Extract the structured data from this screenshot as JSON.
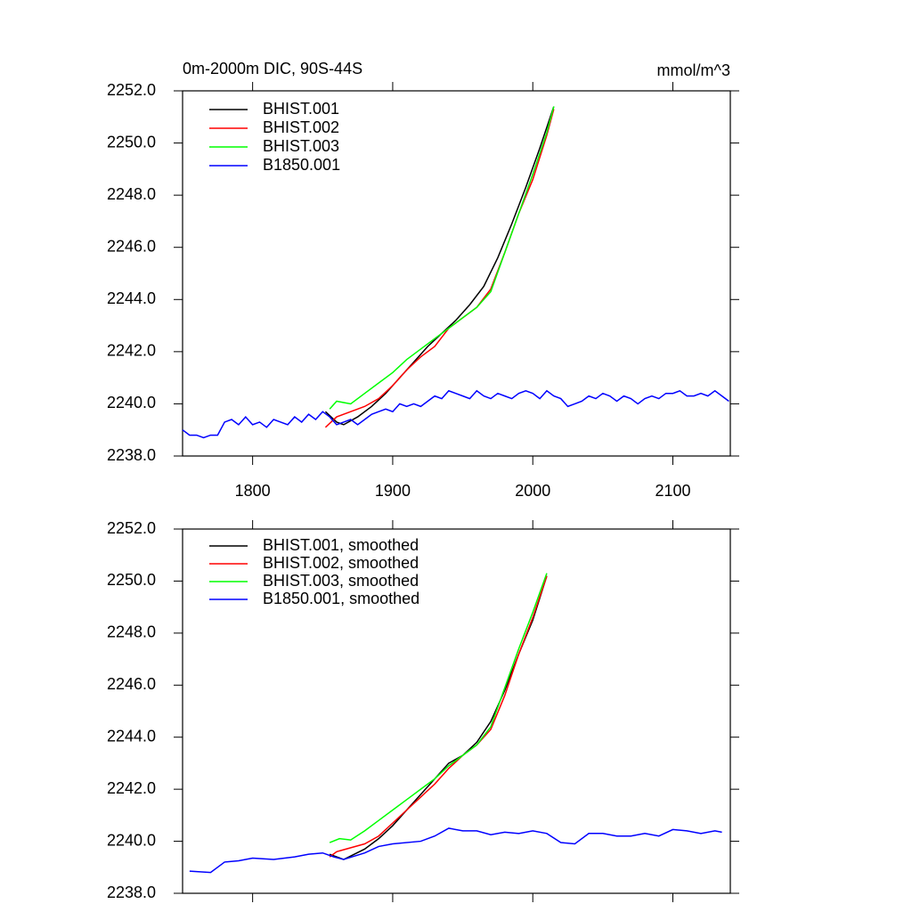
{
  "chart_data": [
    {
      "type": "line",
      "title": "0m-2000m DIC, 90S-44S",
      "subtitle": "mmol/m^3",
      "legend": "upper left",
      "xlim": [
        1750,
        2141
      ],
      "xticks": [
        1800,
        1900,
        2000,
        2100
      ],
      "ylim": [
        2238,
        2252
      ],
      "yticks": [
        {
          "value": 2238,
          "label": "2238.0"
        },
        {
          "value": 2240,
          "label": "2240.0"
        },
        {
          "value": 2242,
          "label": "2242.0"
        },
        {
          "value": 2244,
          "label": "2244.0"
        },
        {
          "value": 2246,
          "label": "2246.0"
        },
        {
          "value": 2248,
          "label": "2248.0"
        },
        {
          "value": 2250,
          "label": "2250.0"
        },
        {
          "value": 2252,
          "label": "2252.0"
        }
      ],
      "series": [
        {
          "name": "BHIST.001",
          "color": "#000000",
          "x": [
            1852,
            1860,
            1865,
            1875,
            1885,
            1895,
            1905,
            1915,
            1925,
            1935,
            1945,
            1955,
            1965,
            1975,
            1985,
            1995,
            2005,
            2015
          ],
          "values": [
            2239.7,
            2239.3,
            2239.2,
            2239.5,
            2239.9,
            2240.4,
            2241.0,
            2241.6,
            2242.2,
            2242.7,
            2243.2,
            2243.8,
            2244.5,
            2245.6,
            2246.9,
            2248.3,
            2249.8,
            2251.4
          ]
        },
        {
          "name": "BHIST.002",
          "color": "#ff0000",
          "x": [
            1852,
            1860,
            1870,
            1880,
            1890,
            1900,
            1910,
            1920,
            1930,
            1940,
            1950,
            1960,
            1970,
            1980,
            1990,
            2000,
            2010,
            2015
          ],
          "values": [
            2239.1,
            2239.5,
            2239.7,
            2239.9,
            2240.2,
            2240.7,
            2241.3,
            2241.8,
            2242.2,
            2242.9,
            2243.3,
            2243.7,
            2244.4,
            2245.8,
            2247.3,
            2248.6,
            2250.3,
            2251.3
          ]
        },
        {
          "name": "BHIST.003",
          "color": "#00ff00",
          "x": [
            1855,
            1860,
            1870,
            1880,
            1890,
            1900,
            1910,
            1920,
            1930,
            1940,
            1950,
            1960,
            1970,
            1980,
            1990,
            2000,
            2010,
            2015
          ],
          "values": [
            2239.8,
            2240.1,
            2240.0,
            2240.4,
            2240.8,
            2241.2,
            2241.7,
            2242.1,
            2242.5,
            2242.9,
            2243.3,
            2243.7,
            2244.3,
            2245.8,
            2247.3,
            2248.8,
            2250.4,
            2251.4
          ]
        },
        {
          "name": "B1850.001",
          "color": "#0000ff",
          "x": [
            1750,
            1755,
            1760,
            1765,
            1770,
            1775,
            1780,
            1785,
            1790,
            1795,
            1800,
            1805,
            1810,
            1815,
            1820,
            1825,
            1830,
            1835,
            1840,
            1845,
            1850,
            1855,
            1860,
            1865,
            1870,
            1875,
            1880,
            1885,
            1890,
            1895,
            1900,
            1905,
            1910,
            1915,
            1920,
            1925,
            1930,
            1935,
            1940,
            1945,
            1950,
            1955,
            1960,
            1965,
            1970,
            1975,
            1980,
            1985,
            1990,
            1995,
            2000,
            2005,
            2010,
            2015,
            2020,
            2025,
            2030,
            2035,
            2040,
            2045,
            2050,
            2055,
            2060,
            2065,
            2070,
            2075,
            2080,
            2085,
            2090,
            2095,
            2100,
            2105,
            2110,
            2115,
            2120,
            2125,
            2130,
            2135,
            2140
          ],
          "values": [
            2239.0,
            2238.8,
            2238.8,
            2238.7,
            2238.8,
            2238.8,
            2239.3,
            2239.4,
            2239.2,
            2239.5,
            2239.2,
            2239.3,
            2239.1,
            2239.4,
            2239.3,
            2239.2,
            2239.5,
            2239.3,
            2239.6,
            2239.4,
            2239.7,
            2239.5,
            2239.2,
            2239.3,
            2239.4,
            2239.2,
            2239.4,
            2239.6,
            2239.7,
            2239.8,
            2239.7,
            2240.0,
            2239.9,
            2240.0,
            2239.9,
            2240.1,
            2240.3,
            2240.2,
            2240.5,
            2240.4,
            2240.3,
            2240.2,
            2240.5,
            2240.3,
            2240.2,
            2240.4,
            2240.3,
            2240.2,
            2240.4,
            2240.5,
            2240.4,
            2240.2,
            2240.5,
            2240.3,
            2240.2,
            2239.9,
            2240.0,
            2240.1,
            2240.3,
            2240.2,
            2240.4,
            2240.3,
            2240.1,
            2240.3,
            2240.2,
            2240.0,
            2240.2,
            2240.3,
            2240.2,
            2240.4,
            2240.4,
            2240.5,
            2240.3,
            2240.3,
            2240.4,
            2240.3,
            2240.5,
            2240.3,
            2240.1
          ]
        }
      ]
    },
    {
      "type": "line",
      "legend": "upper left",
      "xlim": [
        1750,
        2141
      ],
      "ylim": [
        2238,
        2252
      ],
      "yticks": [
        {
          "value": 2238,
          "label": "2238.0"
        },
        {
          "value": 2240,
          "label": "2240.0"
        },
        {
          "value": 2242,
          "label": "2242.0"
        },
        {
          "value": 2244,
          "label": "2244.0"
        },
        {
          "value": 2246,
          "label": "2246.0"
        },
        {
          "value": 2248,
          "label": "2248.0"
        },
        {
          "value": 2250,
          "label": "2250.0"
        },
        {
          "value": 2252,
          "label": "2252.0"
        }
      ],
      "series": [
        {
          "name": "BHIST.001, smoothed",
          "color": "#000000",
          "x": [
            1855,
            1865,
            1880,
            1890,
            1900,
            1910,
            1920,
            1930,
            1940,
            1950,
            1960,
            1970,
            1980,
            1990,
            2000,
            2010
          ],
          "values": [
            2239.5,
            2239.3,
            2239.7,
            2240.1,
            2240.6,
            2241.2,
            2241.8,
            2242.4,
            2243.0,
            2243.3,
            2243.8,
            2244.6,
            2245.8,
            2247.2,
            2248.5,
            2250.2
          ]
        },
        {
          "name": "BHIST.002, smoothed",
          "color": "#ff0000",
          "x": [
            1855,
            1860,
            1870,
            1880,
            1890,
            1900,
            1910,
            1920,
            1930,
            1940,
            1950,
            1960,
            1970,
            1980,
            1990,
            2000,
            2010
          ],
          "values": [
            2239.4,
            2239.6,
            2239.75,
            2239.9,
            2240.2,
            2240.7,
            2241.2,
            2241.7,
            2242.2,
            2242.8,
            2243.3,
            2243.7,
            2244.3,
            2245.6,
            2247.2,
            2248.6,
            2250.2
          ]
        },
        {
          "name": "BHIST.003, smoothed",
          "color": "#00ff00",
          "x": [
            1855,
            1862,
            1870,
            1880,
            1890,
            1900,
            1910,
            1920,
            1930,
            1940,
            1950,
            1960,
            1970,
            1980,
            1990,
            2000,
            2010
          ],
          "values": [
            2239.95,
            2240.1,
            2240.05,
            2240.4,
            2240.8,
            2241.2,
            2241.6,
            2242.0,
            2242.4,
            2242.9,
            2243.3,
            2243.7,
            2244.4,
            2245.9,
            2247.4,
            2248.8,
            2250.3
          ]
        },
        {
          "name": "B1850.001, smoothed",
          "color": "#0000ff",
          "x": [
            1755,
            1770,
            1780,
            1790,
            1800,
            1815,
            1830,
            1840,
            1850,
            1858,
            1865,
            1880,
            1890,
            1900,
            1920,
            1930,
            1940,
            1950,
            1960,
            1970,
            1980,
            1990,
            2000,
            2010,
            2020,
            2030,
            2040,
            2050,
            2060,
            2070,
            2080,
            2090,
            2100,
            2110,
            2120,
            2130,
            2135
          ],
          "values": [
            2238.85,
            2238.8,
            2239.2,
            2239.25,
            2239.35,
            2239.3,
            2239.4,
            2239.5,
            2239.55,
            2239.4,
            2239.3,
            2239.55,
            2239.8,
            2239.9,
            2240.0,
            2240.2,
            2240.5,
            2240.4,
            2240.4,
            2240.25,
            2240.35,
            2240.3,
            2240.4,
            2240.3,
            2239.95,
            2239.9,
            2240.3,
            2240.3,
            2240.2,
            2240.2,
            2240.3,
            2240.2,
            2240.45,
            2240.4,
            2240.3,
            2240.4,
            2240.35
          ]
        }
      ]
    }
  ]
}
